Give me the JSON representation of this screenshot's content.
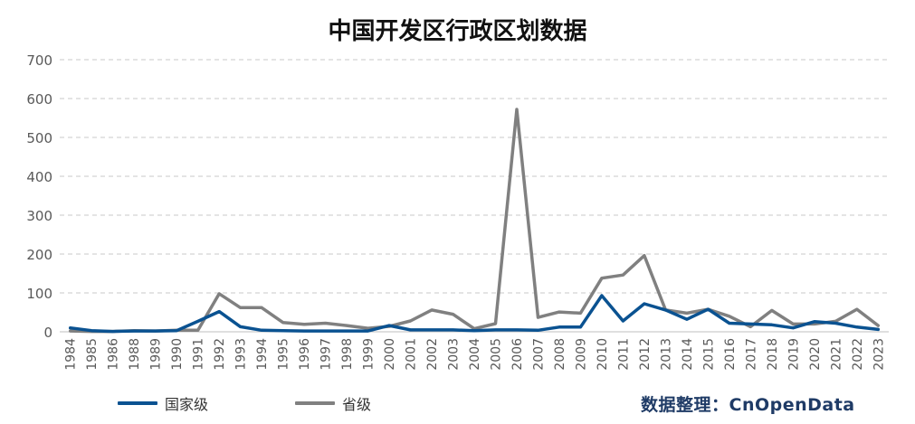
{
  "chart_data": {
    "type": "line",
    "title": "中国开发区行政区划数据",
    "xlabel": "",
    "ylabel": "",
    "ylim": [
      0,
      700
    ],
    "yticks": [
      0,
      100,
      200,
      300,
      400,
      500,
      600,
      700
    ],
    "grid": true,
    "legend_position": "bottom-left",
    "categories": [
      "1984",
      "1985",
      "1986",
      "1988",
      "1989",
      "1990",
      "1991",
      "1992",
      "1993",
      "1994",
      "1995",
      "1996",
      "1997",
      "1998",
      "1999",
      "2000",
      "2001",
      "2002",
      "2003",
      "2004",
      "2005",
      "2006",
      "2007",
      "2008",
      "2009",
      "2010",
      "2011",
      "2012",
      "2013",
      "2014",
      "2015",
      "2016",
      "2017",
      "2018",
      "2019",
      "2020",
      "2021",
      "2022",
      "2023"
    ],
    "series": [
      {
        "name": "国家级",
        "color": "#0a5291",
        "values": [
          10,
          3,
          1,
          2,
          2,
          3,
          27,
          52,
          13,
          4,
          3,
          2,
          2,
          2,
          2,
          16,
          5,
          5,
          5,
          3,
          5,
          5,
          4,
          12,
          12,
          93,
          28,
          72,
          56,
          32,
          58,
          22,
          20,
          18,
          10,
          26,
          22,
          12,
          6
        ]
      },
      {
        "name": "省级",
        "color": "#808080",
        "values": [
          2,
          1,
          1,
          3,
          2,
          4,
          4,
          98,
          62,
          62,
          24,
          19,
          22,
          16,
          9,
          14,
          28,
          56,
          45,
          8,
          21,
          572,
          37,
          51,
          48,
          138,
          146,
          196,
          56,
          48,
          58,
          40,
          13,
          55,
          20,
          20,
          27,
          58,
          16
        ]
      }
    ]
  },
  "credit": "数据整理：CnOpenData"
}
